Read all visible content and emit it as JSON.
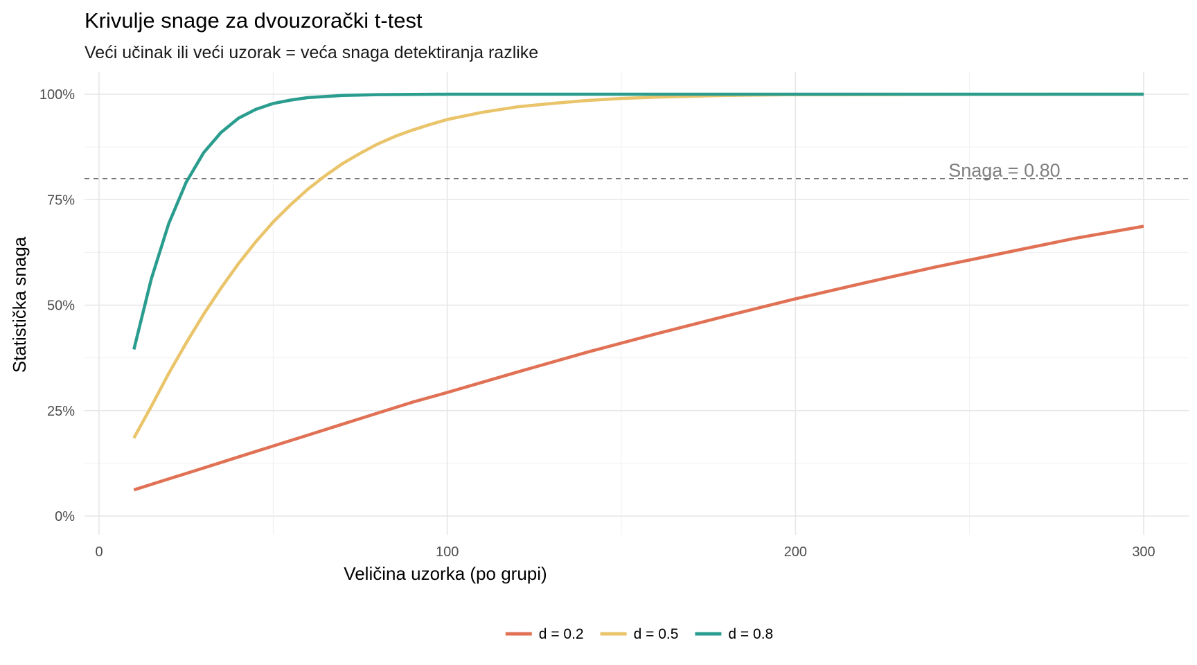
{
  "chart_data": {
    "type": "line",
    "title": "Krivulje snage za dvouzorački t-test",
    "subtitle": "Veći učinak ili veći uzorak = veća snaga detektiranja razlike",
    "xlabel": "Veličina uzorka (po grupi)",
    "ylabel": "Statistička snaga",
    "xlim": [
      0,
      300
    ],
    "ylim": [
      0,
      1
    ],
    "x_ticks": [
      0,
      100,
      200,
      300
    ],
    "x_tick_labels": [
      "0",
      "100",
      "200",
      "300"
    ],
    "y_ticks": [
      0,
      0.25,
      0.5,
      0.75,
      1
    ],
    "y_tick_labels": [
      "0%",
      "25%",
      "50%",
      "75%",
      "100%"
    ],
    "grid": true,
    "legend_position": "bottom",
    "reference_line": {
      "y": 0.8,
      "style": "dashed",
      "label": "Snaga = 0.80"
    },
    "series": [
      {
        "name": "d = 0.2",
        "color": "#e07154",
        "x": [
          10,
          20,
          30,
          40,
          50,
          60,
          70,
          80,
          90,
          100,
          120,
          140,
          160,
          180,
          200,
          220,
          240,
          260,
          280,
          300
        ],
        "values": [
          0.062,
          0.088,
          0.114,
          0.14,
          0.166,
          0.192,
          0.218,
          0.244,
          0.27,
          0.293,
          0.341,
          0.388,
          0.432,
          0.474,
          0.515,
          0.553,
          0.59,
          0.624,
          0.658,
          0.687
        ]
      },
      {
        "name": "d = 0.5",
        "color": "#e9c46a",
        "x": [
          10,
          15,
          20,
          25,
          30,
          35,
          40,
          45,
          50,
          55,
          60,
          65,
          70,
          75,
          80,
          85,
          90,
          95,
          100,
          110,
          120,
          130,
          140,
          150,
          160,
          170,
          180,
          200,
          300
        ],
        "values": [
          0.185,
          0.26,
          0.338,
          0.41,
          0.478,
          0.54,
          0.598,
          0.65,
          0.697,
          0.738,
          0.775,
          0.807,
          0.836,
          0.86,
          0.882,
          0.9,
          0.915,
          0.928,
          0.94,
          0.957,
          0.97,
          0.978,
          0.985,
          0.99,
          0.993,
          0.995,
          0.997,
          0.999,
          1.0
        ]
      },
      {
        "name": "d = 0.8",
        "color": "#2a9d8f",
        "x": [
          10,
          15,
          20,
          25,
          30,
          35,
          40,
          45,
          50,
          55,
          60,
          70,
          80,
          100,
          150,
          200,
          300
        ],
        "values": [
          0.395,
          0.562,
          0.693,
          0.791,
          0.861,
          0.909,
          0.943,
          0.964,
          0.978,
          0.986,
          0.992,
          0.997,
          0.999,
          1.0,
          1.0,
          1.0,
          1.0
        ]
      }
    ]
  }
}
